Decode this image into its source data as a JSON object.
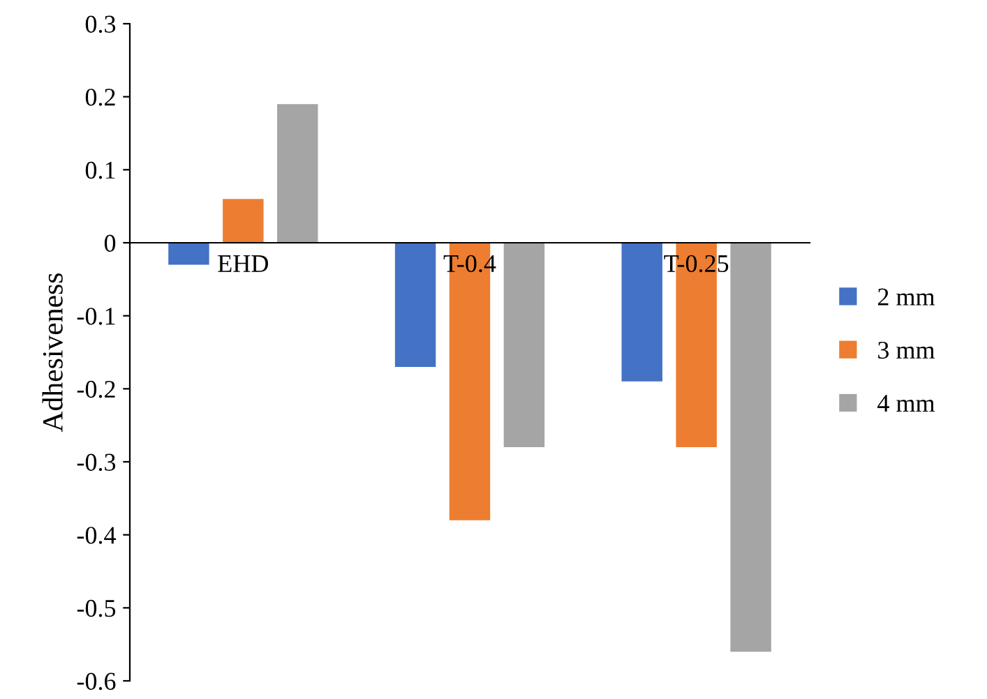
{
  "chart_data": {
    "type": "bar",
    "ylabel": "Adhesiveness",
    "categories": [
      "EHD",
      "T-0.4",
      "T-0.25"
    ],
    "series": [
      {
        "name": "2 mm",
        "color": "#4472c4",
        "values": [
          -0.03,
          -0.17,
          -0.19
        ]
      },
      {
        "name": "3 mm",
        "color": "#ed7d31",
        "values": [
          0.06,
          -0.38,
          -0.28
        ]
      },
      {
        "name": "4 mm",
        "color": "#a5a5a5",
        "values": [
          0.19,
          -0.28,
          -0.56
        ]
      }
    ],
    "ylim": [
      -0.6,
      0.3
    ],
    "yticks": [
      {
        "value": -0.6,
        "label": "-0.6"
      },
      {
        "value": -0.5,
        "label": "-0.5"
      },
      {
        "value": -0.4,
        "label": "-0.4"
      },
      {
        "value": -0.3,
        "label": "-0.3"
      },
      {
        "value": -0.2,
        "label": "-0.2"
      },
      {
        "value": -0.1,
        "label": "-0.1"
      },
      {
        "value": 0,
        "label": "0"
      },
      {
        "value": 0.1,
        "label": "0.1"
      },
      {
        "value": 0.2,
        "label": "0.2"
      },
      {
        "value": 0.3,
        "label": "0.3"
      }
    ],
    "grid": false,
    "legend": "right"
  }
}
